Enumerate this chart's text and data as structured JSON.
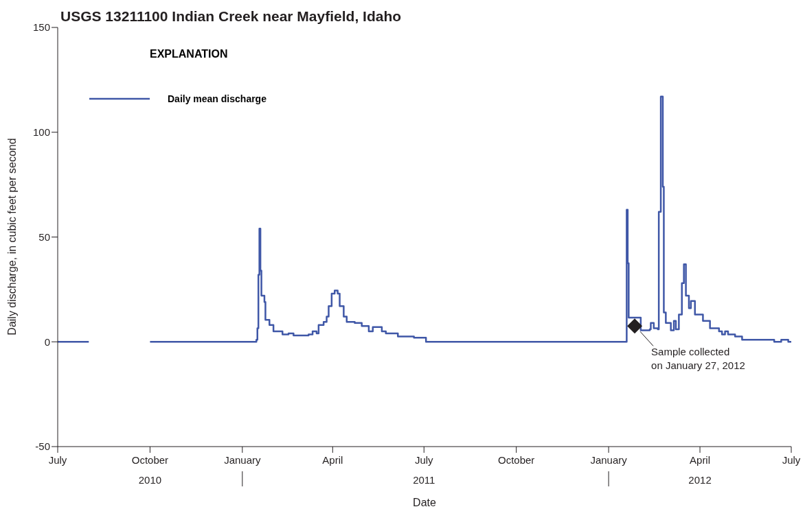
{
  "chart_data": {
    "type": "step",
    "title": "USGS 13211100 Indian Creek near Mayfield, Idaho",
    "xlabel": "Date",
    "ylabel": "Daily discharge, in cubic feet per second",
    "legend_title": "EXPLANATION",
    "legend": "top left",
    "grid": false,
    "x": [
      "2010-07-01",
      "2010-08-01",
      "2010-08-02",
      "2010-10-01",
      "2011-01-10",
      "2011-01-15",
      "2011-01-16",
      "2011-01-17",
      "2011-01-18",
      "2011-01-19",
      "2011-01-20",
      "2011-01-23",
      "2011-01-24",
      "2011-01-28",
      "2011-02-01",
      "2011-02-10",
      "2011-02-16",
      "2011-02-21",
      "2011-03-08",
      "2011-03-12",
      "2011-03-16",
      "2011-03-18",
      "2011-03-23",
      "2011-03-26",
      "2011-03-28",
      "2011-03-31",
      "2011-04-03",
      "2011-04-06",
      "2011-04-08",
      "2011-04-12",
      "2011-04-15",
      "2011-04-23",
      "2011-04-30",
      "2011-05-07",
      "2011-05-11",
      "2011-05-20",
      "2011-05-24",
      "2011-06-02",
      "2011-06-05",
      "2011-06-21",
      "2011-07-03",
      "2012-01-18",
      "2012-01-19",
      "2012-01-20",
      "2012-01-21",
      "2012-02-02",
      "2012-02-11",
      "2012-02-12",
      "2012-02-15",
      "2012-02-19",
      "2012-02-20",
      "2012-02-22",
      "2012-02-24",
      "2012-02-25",
      "2012-02-27",
      "2012-03-03",
      "2012-03-06",
      "2012-03-08",
      "2012-03-11",
      "2012-03-14",
      "2012-03-16",
      "2012-03-18",
      "2012-03-21",
      "2012-03-23",
      "2012-03-27",
      "2012-04-04",
      "2012-04-11",
      "2012-04-20",
      "2012-04-23",
      "2012-04-26",
      "2012-04-29",
      "2012-05-06",
      "2012-05-13",
      "2012-06-12",
      "2012-06-14",
      "2012-06-21",
      "2012-06-28",
      "2012-07-01"
    ],
    "series": [
      {
        "name": "Daily mean discharge",
        "color": "#3f57a7",
        "values": [
          0,
          0,
          null,
          0,
          0,
          1,
          6.5,
          32,
          54,
          34,
          22,
          19,
          10.5,
          8,
          5,
          3.5,
          4,
          3,
          3.5,
          5,
          4,
          8,
          9.5,
          12,
          17,
          23,
          24.5,
          23,
          17,
          12,
          9.5,
          9,
          7.5,
          5,
          7,
          5,
          4,
          4,
          2.5,
          2,
          0,
          0,
          63,
          37.5,
          11.5,
          5.5,
          6,
          9,
          6.5,
          6,
          62,
          117,
          74,
          14,
          9,
          5.5,
          10,
          6,
          13,
          28,
          37,
          22,
          16,
          19.5,
          13,
          10,
          6.5,
          5,
          3.5,
          5,
          3.5,
          2.5,
          1,
          1,
          0,
          1,
          0,
          0
        ]
      },
      {
        "type": "scatter",
        "color": "#231f20",
        "marker": "diamond",
        "x": [
          "2012-01-27"
        ],
        "values": [
          7.5
        ]
      }
    ],
    "xlim": [
      "2010-07-01",
      "2012-07-01"
    ],
    "xticks": [
      {
        "value": "2010-07-01",
        "label": "July"
      },
      {
        "value": "2010-10-01",
        "label": "October"
      },
      {
        "value": "2011-01-01",
        "label": "January"
      },
      {
        "value": "2011-04-01",
        "label": "April"
      },
      {
        "value": "2011-07-01",
        "label": "July"
      },
      {
        "value": "2011-10-01",
        "label": "October"
      },
      {
        "value": "2012-01-01",
        "label": "January"
      },
      {
        "value": "2012-04-01",
        "label": "April"
      },
      {
        "value": "2012-07-01",
        "label": "July"
      }
    ],
    "x2lim": [
      "2010-07-01",
      "2012-07-01"
    ],
    "x2ticks": [
      {
        "value": "2010-10-01",
        "label": "2010"
      },
      {
        "value": "2011-01-01",
        "label": null
      },
      {
        "value": "2011-07-01",
        "label": "2011"
      },
      {
        "value": "2012-01-01",
        "label": null
      },
      {
        "value": "2012-04-01",
        "label": "2012"
      }
    ],
    "ylim": [
      -50,
      150
    ],
    "yticks": [
      -50,
      0,
      50,
      100,
      150
    ],
    "annotations": [
      {
        "text": "Sample collected\non January 27, 2012",
        "x": "2012-01-27",
        "y": 7.5
      }
    ]
  }
}
